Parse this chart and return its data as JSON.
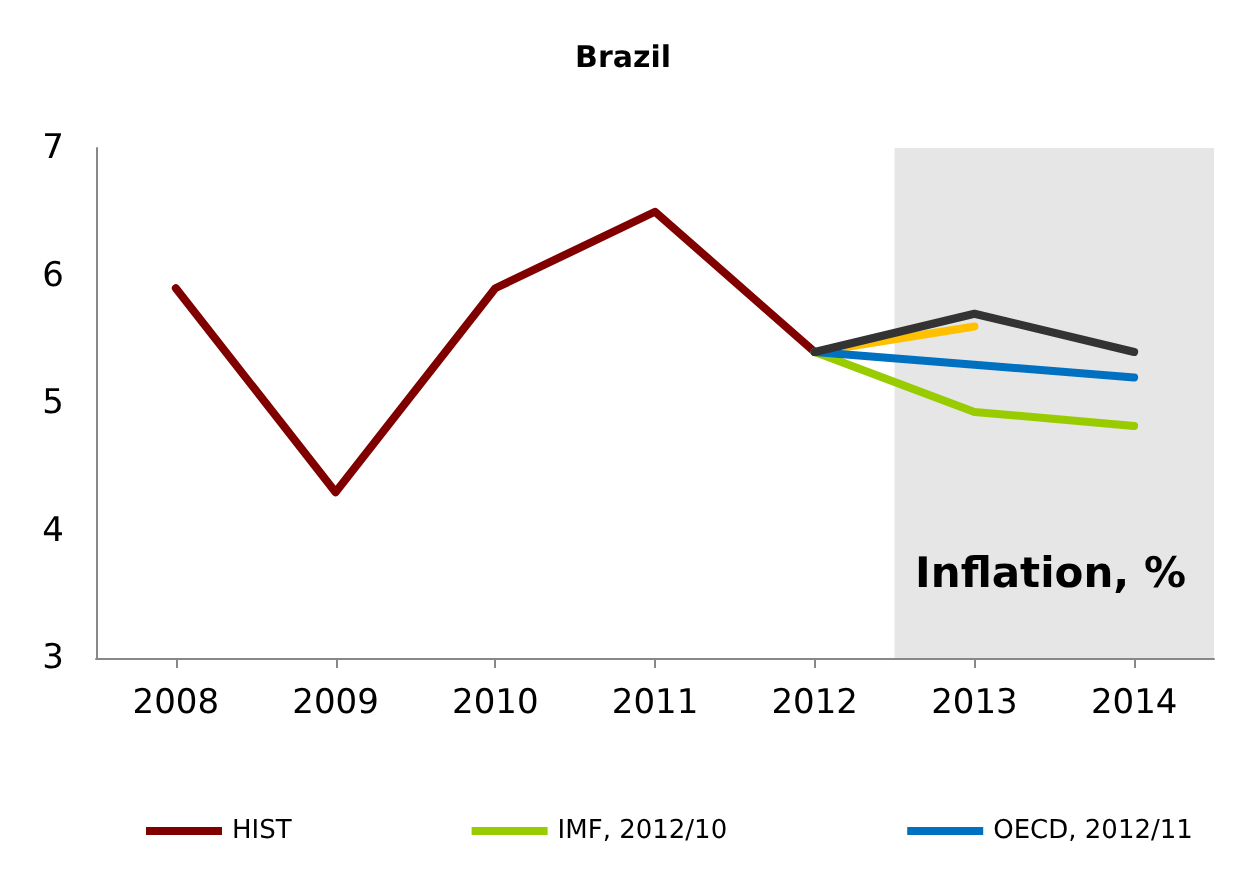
{
  "chart_data": {
    "type": "line",
    "title": "Brazil",
    "annotations": [
      "Inflation, %"
    ],
    "x": [
      2008,
      2009,
      2010,
      2011,
      2012
    ],
    "xlim": [
      2007.5,
      2014.5
    ],
    "xticks": [
      2008,
      2009,
      2010,
      2011,
      2012,
      2013,
      2014
    ],
    "ylim": [
      3,
      7
    ],
    "yticks": [
      3,
      4,
      5,
      6,
      7
    ],
    "grid": false,
    "legend": "bottom",
    "marker": "none",
    "line_style": "solid",
    "bands": [
      {
        "axis": "x",
        "from": 2012.5,
        "to": 2014.5,
        "color": "#e6e6e6"
      }
    ],
    "series": [
      {
        "name": "HIST",
        "color": "#800000",
        "values": [
          5.9,
          4.3,
          5.9,
          6.5,
          5.4
        ]
      },
      {
        "color": "#ffc000",
        "x": [
          2012,
          2013
        ],
        "values": [
          5.4,
          5.6
        ]
      },
      {
        "name": "IMF, 2012/10",
        "color": "#99cc00",
        "x": [
          2012,
          2013,
          2014
        ],
        "values": [
          5.4,
          4.93,
          4.82
        ]
      },
      {
        "name": "OECD, 2012/11",
        "color": "#0070c0",
        "x": [
          2012,
          2013,
          2014
        ],
        "values": [
          5.4,
          5.3,
          5.2
        ]
      },
      {
        "color": "#333333",
        "x": [
          2012,
          2013,
          2014
        ],
        "values": [
          5.4,
          5.7,
          5.4
        ]
      }
    ]
  }
}
